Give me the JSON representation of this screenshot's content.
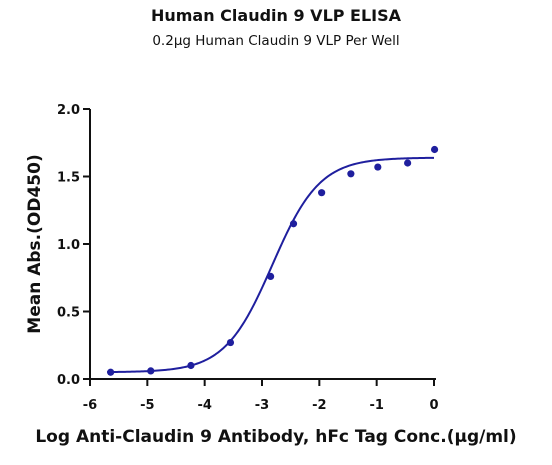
{
  "chart_data": {
    "type": "scatter",
    "title": "Human Claudin 9 VLP ELISA",
    "subtitle": "0.2μg Human Claudin 9  VLP Per Well",
    "xlabel": "Log Anti-Claudin 9 Antibody, hFc Tag Conc.(μg/ml)",
    "ylabel": "Mean Abs.(OD450)",
    "xlim": [
      -6,
      0
    ],
    "ylim": [
      0,
      2.0
    ],
    "x_ticks": [
      -6,
      -5,
      -4,
      -3,
      -2,
      -1,
      0
    ],
    "x_tick_labels": [
      "-6",
      "-5",
      "-4",
      "-3",
      "-2",
      "-1",
      "0"
    ],
    "y_ticks": [
      0.0,
      0.5,
      1.0,
      1.5,
      2.0
    ],
    "y_tick_labels": [
      "0.0",
      "0.5",
      "1.0",
      "1.5",
      "2.0"
    ],
    "series": [
      {
        "x": [
          -5.64,
          -4.94,
          -4.24,
          -3.55,
          -2.85,
          -2.45,
          -1.96,
          -1.45,
          -0.98,
          -0.46,
          0.01
        ],
        "y": [
          0.05,
          0.06,
          0.1,
          0.27,
          0.76,
          1.15,
          1.38,
          1.52,
          1.57,
          1.6,
          1.7
        ],
        "color": "#1f1f9e",
        "fit": {
          "model": "4PL",
          "bottom": 0.05,
          "top": 1.64,
          "logEC50": -2.82,
          "hill": 1.05
        }
      }
    ],
    "grid": false
  }
}
